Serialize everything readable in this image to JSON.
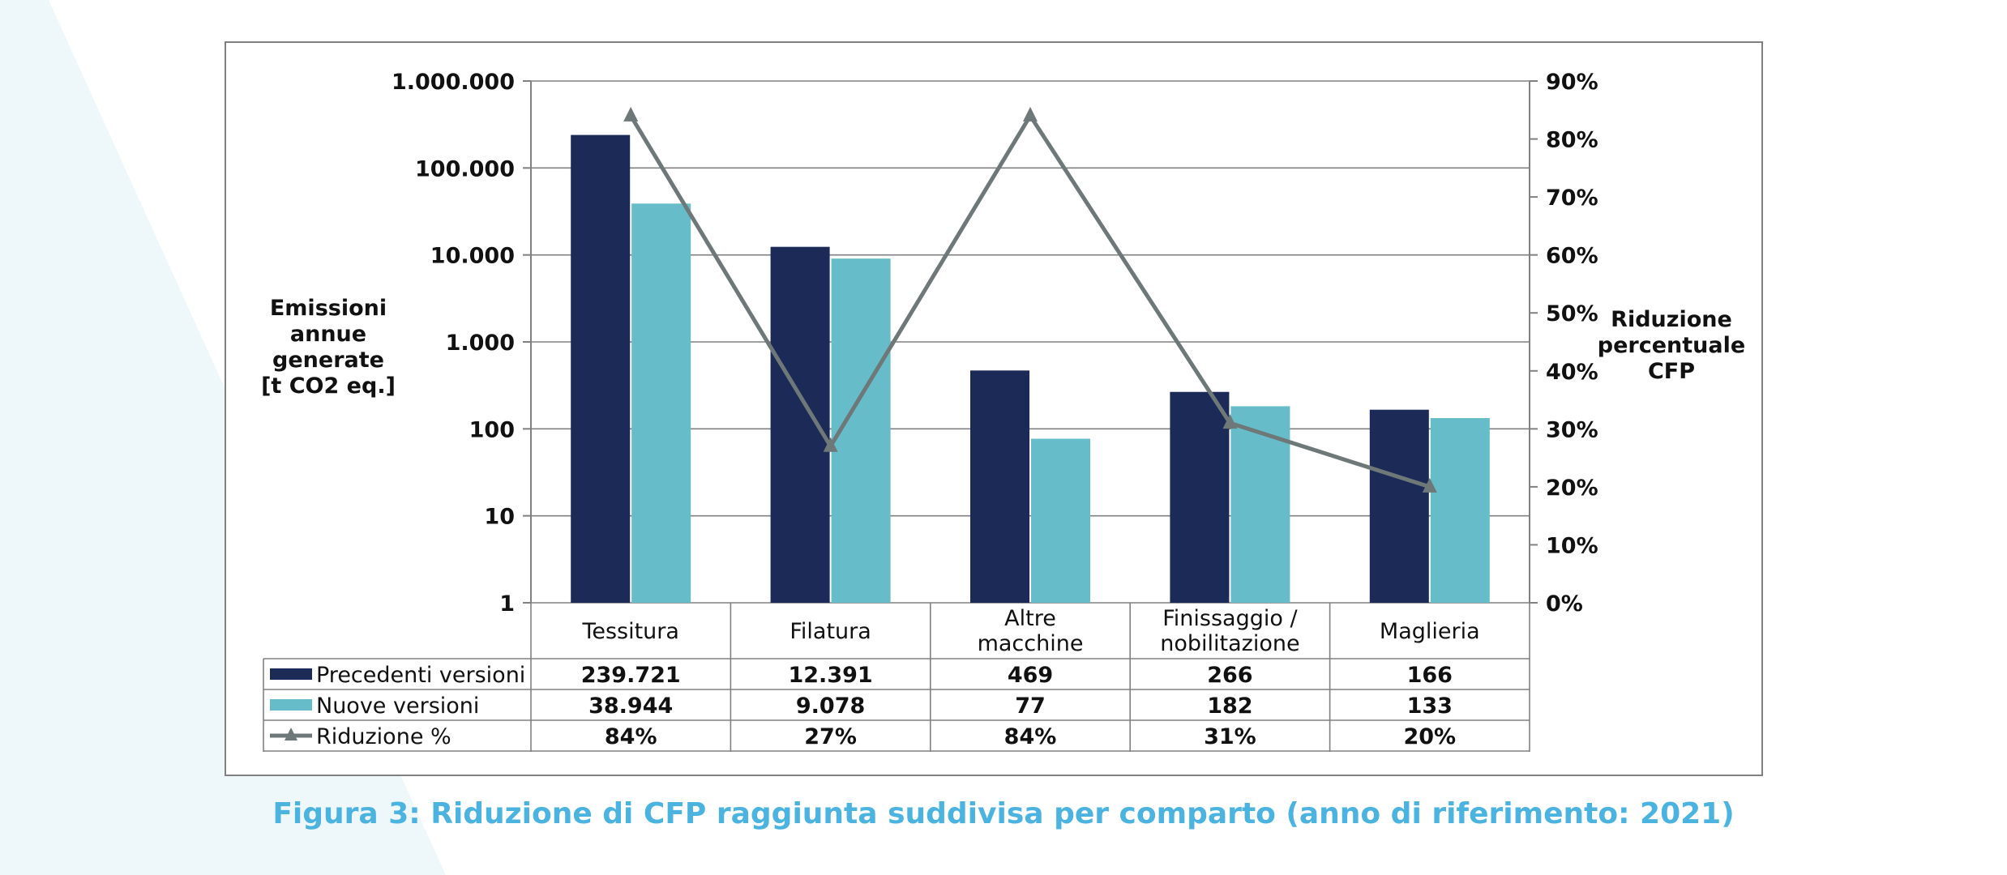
{
  "colors": {
    "previous": "#1b2a56",
    "new": "#66bdc9",
    "reduction": "#6e7878",
    "grid": "#808080",
    "caption": "#4bb3e0",
    "background_shape": "#eef7fa"
  },
  "caption": "Figura 3: Riduzione di CFP raggiunta suddivisa per comparto (anno di riferimento: 2021)",
  "chart_data": {
    "type": "bar",
    "title": "",
    "categories": [
      [
        "Tessitura"
      ],
      [
        "Filatura"
      ],
      [
        "Altre",
        "macchine"
      ],
      [
        "Finissaggio /",
        "nobilitazione"
      ],
      [
        "Maglieria"
      ]
    ],
    "y_left": {
      "label": [
        "Emissioni",
        "annue",
        "generate",
        "[t CO2 eq.]"
      ],
      "scale": "log",
      "range": [
        1,
        1000000
      ],
      "ticks": [
        1,
        10,
        100,
        1000,
        10000,
        100000,
        1000000
      ],
      "tick_labels": [
        "1",
        "10",
        "100",
        "1.000",
        "10.000",
        "100.000",
        "1.000.000"
      ]
    },
    "y_right": {
      "label": [
        "Riduzione",
        "percentuale",
        "CFP"
      ],
      "range": [
        0,
        90
      ],
      "ticks": [
        0,
        10,
        20,
        30,
        40,
        50,
        60,
        70,
        80,
        90
      ],
      "tick_labels": [
        "0%",
        "10%",
        "20%",
        "30%",
        "40%",
        "50%",
        "60%",
        "70%",
        "80%",
        "90%"
      ]
    },
    "series": [
      {
        "name": "Precedenti versioni",
        "type": "bar",
        "axis": "left",
        "values": [
          239721,
          12391,
          469,
          266,
          166
        ],
        "labels": [
          "239.721",
          "12.391",
          "469",
          "266",
          "166"
        ]
      },
      {
        "name": "Nuove versioni",
        "type": "bar",
        "axis": "left",
        "values": [
          38944,
          9078,
          77,
          182,
          133
        ],
        "labels": [
          "38.944",
          "9.078",
          "77",
          "182",
          "133"
        ]
      },
      {
        "name": "Riduzione %",
        "type": "line",
        "axis": "right",
        "values": [
          84,
          27,
          84,
          31,
          20
        ],
        "labels": [
          "84%",
          "27%",
          "84%",
          "31%",
          "20%"
        ]
      }
    ],
    "grid": true,
    "legend": "data-table-below"
  }
}
